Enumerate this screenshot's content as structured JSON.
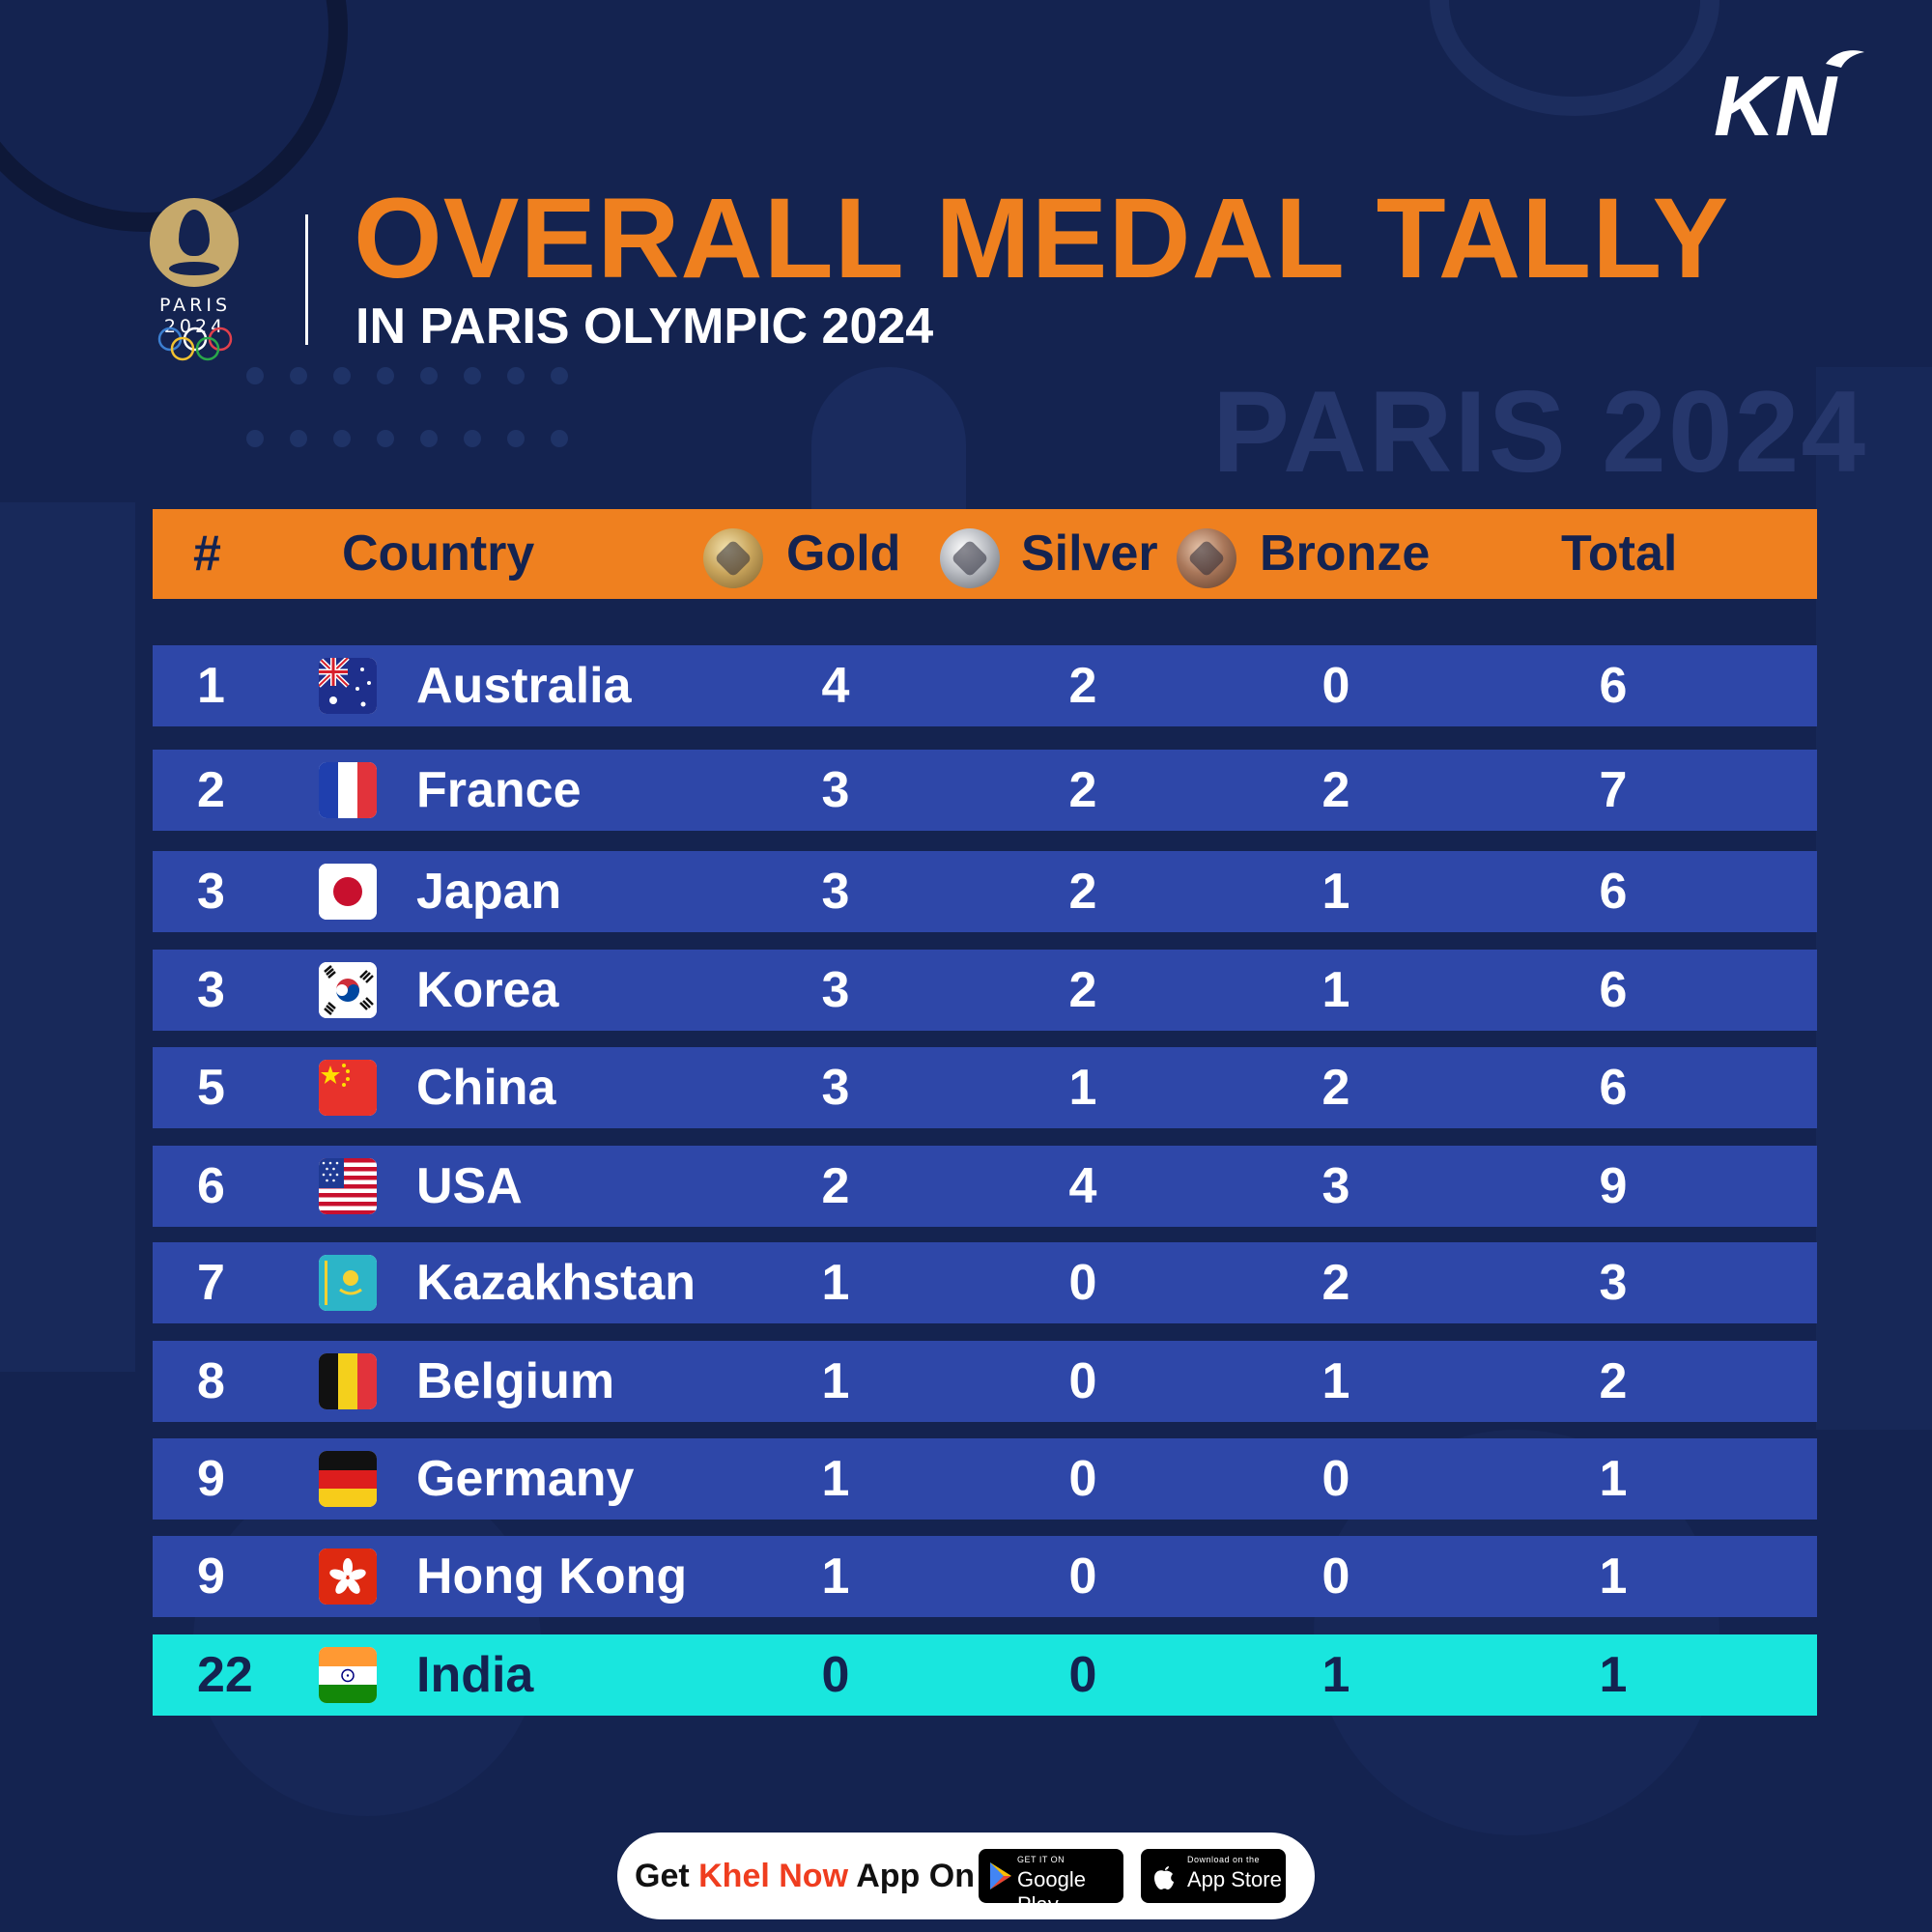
{
  "logo": {
    "text": "PARIS 2024"
  },
  "header": {
    "title": "OVERALL MEDAL TALLY",
    "subtitle": "IN PARIS OLYMPIC 2024"
  },
  "watermark": "PARIS 2024",
  "brand_logo": "KN",
  "table": {
    "headers": {
      "rank": "#",
      "country": "Country",
      "gold": "Gold",
      "silver": "Silver",
      "bronze": "Bronze",
      "total": "Total"
    },
    "rows": [
      {
        "rank": "1",
        "country": "Australia",
        "flag": "au-flag",
        "gold": "4",
        "silver": "2",
        "bronze": "0",
        "total": "6"
      },
      {
        "rank": "2",
        "country": "France",
        "flag": "fr-flag",
        "gold": "3",
        "silver": "2",
        "bronze": "2",
        "total": "7"
      },
      {
        "rank": "3",
        "country": "Japan",
        "flag": "jp-flag",
        "gold": "3",
        "silver": "2",
        "bronze": "1",
        "total": "6"
      },
      {
        "rank": "3",
        "country": "Korea",
        "flag": "kr-flag",
        "gold": "3",
        "silver": "2",
        "bronze": "1",
        "total": "6"
      },
      {
        "rank": "5",
        "country": "China",
        "flag": "cn-flag",
        "gold": "3",
        "silver": "1",
        "bronze": "2",
        "total": "6"
      },
      {
        "rank": "6",
        "country": "USA",
        "flag": "us-flag",
        "gold": "2",
        "silver": "4",
        "bronze": "3",
        "total": "9"
      },
      {
        "rank": "7",
        "country": "Kazakhstan",
        "flag": "kz-flag",
        "gold": "1",
        "silver": "0",
        "bronze": "2",
        "total": "3"
      },
      {
        "rank": "8",
        "country": "Belgium",
        "flag": "be-flag",
        "gold": "1",
        "silver": "0",
        "bronze": "1",
        "total": "2"
      },
      {
        "rank": "9",
        "country": "Germany",
        "flag": "de-flag",
        "gold": "1",
        "silver": "0",
        "bronze": "0",
        "total": "1"
      },
      {
        "rank": "9",
        "country": "Hong Kong",
        "flag": "hk-flag",
        "gold": "1",
        "silver": "0",
        "bronze": "0",
        "total": "1"
      },
      {
        "rank": "22",
        "country": "India",
        "flag": "in-flag",
        "gold": "0",
        "silver": "0",
        "bronze": "1",
        "total": "1",
        "highlight": true
      }
    ]
  },
  "footer": {
    "prefix": "Get ",
    "brand": "Khel Now",
    "suffix": " App On",
    "google_play_small": "GET IT ON",
    "google_play_big": "Google Play",
    "app_store_small": "Download on the",
    "app_store_big": "App Store"
  },
  "colors": {
    "background": "#142350",
    "accent_orange": "#ef801f",
    "row_blue": "#2e47a8",
    "highlight_cyan": "#19e6de"
  }
}
